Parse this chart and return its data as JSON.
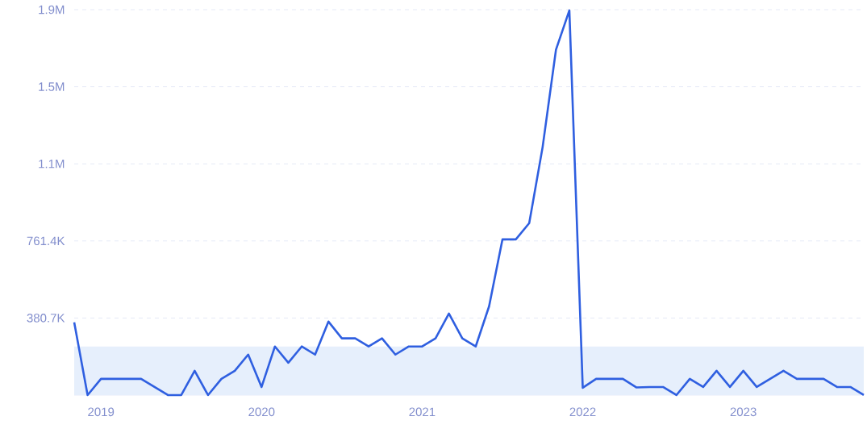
{
  "chart_data": {
    "type": "line",
    "x": [
      "2018-11",
      "2018-12",
      "2019-01",
      "2019-02",
      "2019-03",
      "2019-04",
      "2019-05",
      "2019-06",
      "2019-07",
      "2019-08",
      "2019-09",
      "2019-10",
      "2019-11",
      "2019-12",
      "2020-01",
      "2020-02",
      "2020-03",
      "2020-04",
      "2020-05",
      "2020-06",
      "2020-07",
      "2020-08",
      "2020-09",
      "2020-10",
      "2020-11",
      "2020-12",
      "2021-01",
      "2021-02",
      "2021-03",
      "2021-04",
      "2021-05",
      "2021-06",
      "2021-07",
      "2021-08",
      "2021-09",
      "2021-10",
      "2021-11",
      "2021-12",
      "2022-01",
      "2022-02",
      "2022-03",
      "2022-04",
      "2022-05",
      "2022-06",
      "2022-07",
      "2022-08",
      "2022-09",
      "2022-10",
      "2022-11",
      "2022-12",
      "2023-01",
      "2023-02",
      "2023-03",
      "2023-04",
      "2023-05",
      "2023-06",
      "2023-07",
      "2023-08",
      "2023-09",
      "2023-10"
    ],
    "series": [
      {
        "color": "#2f5fe0",
        "values": [
          359000,
          0,
          80000,
          80000,
          80000,
          80000,
          40000,
          0,
          0,
          120000,
          0,
          80000,
          120000,
          200000,
          40000,
          240000,
          160000,
          240000,
          200000,
          363000,
          280000,
          280000,
          240000,
          280000,
          200000,
          240000,
          240000,
          280000,
          403000,
          280000,
          240000,
          438000,
          769000,
          769000,
          849000,
          1224000,
          1706000,
          1900000,
          36000,
          80000,
          80000,
          80000,
          38000,
          40000,
          40000,
          0,
          80000,
          40000,
          120000,
          40000,
          120000,
          40000,
          80000,
          120000,
          80000,
          80000,
          80000,
          40000,
          40000,
          0
        ]
      }
    ],
    "xlim": [
      "2018-11",
      "2023-10"
    ],
    "xticks": [
      {
        "value": "2019-01",
        "label": "2019"
      },
      {
        "value": "2020-01",
        "label": "2020"
      },
      {
        "value": "2021-01",
        "label": "2021"
      },
      {
        "value": "2022-01",
        "label": "2022"
      },
      {
        "value": "2023-01",
        "label": "2023"
      }
    ],
    "ylim": [
      0,
      1903500
    ],
    "yticks": [
      {
        "value": 380700,
        "label": "380.7K"
      },
      {
        "value": 761400,
        "label": "761.4K"
      },
      {
        "value": 1142100,
        "label": "1.1M"
      },
      {
        "value": 1522800,
        "label": "1.5M"
      },
      {
        "value": 1903500,
        "label": "1.9M"
      }
    ],
    "grid": "y",
    "bands": [
      {
        "axis": "y",
        "from": 0,
        "to": 240000,
        "color": "#e6effc"
      }
    ]
  }
}
